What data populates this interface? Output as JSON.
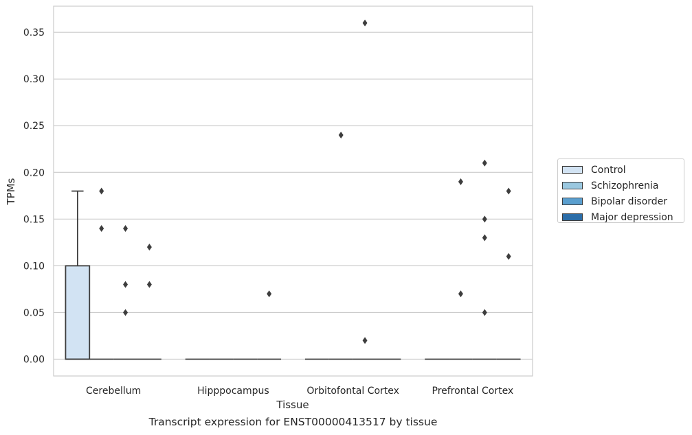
{
  "chart_data": {
    "type": "box",
    "caption": "Transcript expression for ENST00000413517 by tissue",
    "xlabel": "Tissue",
    "ylabel": "TPMs",
    "ylim": [
      -0.018,
      0.378
    ],
    "yticks": [
      "0.00",
      "0.05",
      "0.10",
      "0.15",
      "0.20",
      "0.25",
      "0.30",
      "0.35"
    ],
    "ytick_values": [
      0,
      0.05,
      0.1,
      0.15,
      0.2,
      0.25,
      0.3,
      0.35
    ],
    "categories": [
      "Cerebellum",
      "Hipppocampus",
      "Orbitofontal Cortex",
      "Prefrontal Cortex"
    ],
    "grid": "horizontal",
    "legend_position": "right",
    "series": [
      {
        "name": "Control",
        "color": "#d2e3f3",
        "boxes": [
          {
            "q1": 0,
            "median": 0,
            "q3": 0.1,
            "whisker_low": 0,
            "whisker_high": 0.18,
            "outliers": []
          },
          {
            "q1": 0,
            "median": 0,
            "q3": 0,
            "whisker_low": 0,
            "whisker_high": 0,
            "outliers": []
          },
          {
            "q1": 0,
            "median": 0,
            "q3": 0,
            "whisker_low": 0,
            "whisker_high": 0,
            "outliers": []
          },
          {
            "q1": 0,
            "median": 0,
            "q3": 0,
            "whisker_low": 0,
            "whisker_high": 0,
            "outliers": []
          }
        ]
      },
      {
        "name": "Schizophrenia",
        "color": "#9ac8e0",
        "boxes": [
          {
            "q1": 0,
            "median": 0,
            "q3": 0,
            "whisker_low": 0,
            "whisker_high": 0,
            "outliers": [
              0.18,
              0.14
            ]
          },
          {
            "q1": 0,
            "median": 0,
            "q3": 0,
            "whisker_low": 0,
            "whisker_high": 0,
            "outliers": []
          },
          {
            "q1": 0,
            "median": 0,
            "q3": 0,
            "whisker_low": 0,
            "whisker_high": 0,
            "outliers": [
              0.24
            ]
          },
          {
            "q1": 0,
            "median": 0,
            "q3": 0,
            "whisker_low": 0,
            "whisker_high": 0,
            "outliers": [
              0.19,
              0.07
            ]
          }
        ]
      },
      {
        "name": "Bipolar disorder",
        "color": "#5a9fcf",
        "boxes": [
          {
            "q1": 0,
            "median": 0,
            "q3": 0,
            "whisker_low": 0,
            "whisker_high": 0,
            "outliers": [
              0.14,
              0.08,
              0.05
            ]
          },
          {
            "q1": 0,
            "median": 0,
            "q3": 0,
            "whisker_low": 0,
            "whisker_high": 0,
            "outliers": []
          },
          {
            "q1": 0,
            "median": 0,
            "q3": 0,
            "whisker_low": 0,
            "whisker_high": 0,
            "outliers": [
              0.36,
              0.02
            ]
          },
          {
            "q1": 0,
            "median": 0,
            "q3": 0,
            "whisker_low": 0,
            "whisker_high": 0,
            "outliers": [
              0.21,
              0.15,
              0.13,
              0.05
            ]
          }
        ]
      },
      {
        "name": "Major depression",
        "color": "#2b6da8",
        "boxes": [
          {
            "q1": 0,
            "median": 0,
            "q3": 0,
            "whisker_low": 0,
            "whisker_high": 0,
            "outliers": [
              0.12,
              0.08
            ]
          },
          {
            "q1": 0,
            "median": 0,
            "q3": 0,
            "whisker_low": 0,
            "whisker_high": 0,
            "outliers": [
              0.07
            ]
          },
          {
            "q1": 0,
            "median": 0,
            "q3": 0,
            "whisker_low": 0,
            "whisker_high": 0,
            "outliers": []
          },
          {
            "q1": 0,
            "median": 0,
            "q3": 0,
            "whisker_low": 0,
            "whisker_high": 0,
            "outliers": [
              0.18,
              0.11
            ]
          }
        ]
      }
    ]
  }
}
